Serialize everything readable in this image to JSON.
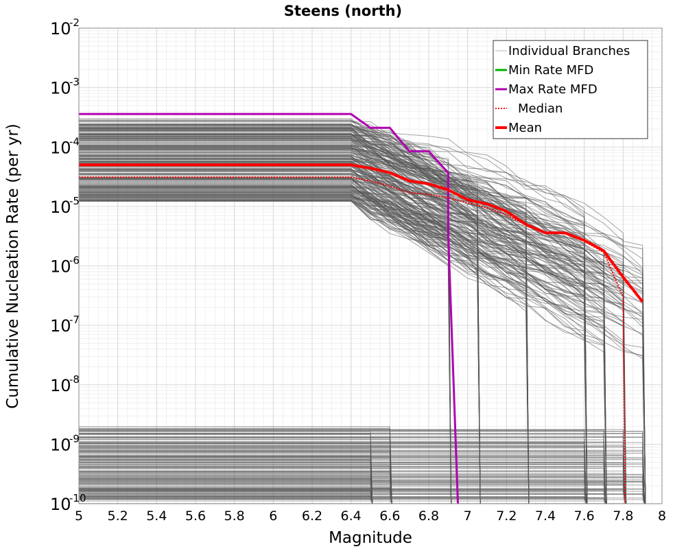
{
  "chart_data": {
    "type": "line",
    "title": "Steens (north)",
    "xlabel": "Magnitude",
    "ylabel": "Cumulative Nucleation Rate (per yr)",
    "x_scale": "linear",
    "y_scale": "log",
    "xlim": [
      5,
      8
    ],
    "ylim": [
      1e-10,
      0.01
    ],
    "grid": true,
    "legend_position": "top-right",
    "x_ticks": [
      "5",
      "5.2",
      "5.4",
      "5.6",
      "5.8",
      "6",
      "6.2",
      "6.4",
      "6.6",
      "6.8",
      "7",
      "7.2",
      "7.4",
      "7.6",
      "7.8",
      "8"
    ],
    "y_ticks": [
      {
        "base": "10",
        "exp": "-10",
        "value": 1e-10
      },
      {
        "base": "10",
        "exp": "-9",
        "value": 1e-09
      },
      {
        "base": "10",
        "exp": "-8",
        "value": 1e-08
      },
      {
        "base": "10",
        "exp": "-7",
        "value": 1e-07
      },
      {
        "base": "10",
        "exp": "-6",
        "value": 1e-06
      },
      {
        "base": "10",
        "exp": "-5",
        "value": 1e-05
      },
      {
        "base": "10",
        "exp": "-4",
        "value": 0.0001
      },
      {
        "base": "10",
        "exp": "-3",
        "value": 0.001
      },
      {
        "base": "10",
        "exp": "-2",
        "value": 0.01
      }
    ],
    "legend": [
      {
        "label": "Individual Branches",
        "color": "#b4b4b4",
        "style": "thin"
      },
      {
        "label": "Min Rate MFD",
        "color": "#00b000",
        "style": "solid"
      },
      {
        "label": "Max Rate MFD",
        "color": "#b000b0",
        "style": "solid"
      },
      {
        "label": "Median",
        "color": "#ff0000",
        "style": "dotted"
      },
      {
        "label": "Mean",
        "color": "#ff0000",
        "style": "thick"
      }
    ],
    "series": [
      {
        "name": "Max Rate MFD",
        "color": "#b000b0",
        "points": [
          [
            5.0,
            0.00036
          ],
          [
            6.4,
            0.00036
          ],
          [
            6.5,
            0.00021
          ],
          [
            6.6,
            0.00021
          ],
          [
            6.7,
            8.5e-05
          ],
          [
            6.8,
            8.5e-05
          ],
          [
            6.9,
            3.7e-05
          ],
          [
            6.9,
            3.7e-06
          ],
          [
            6.95,
            1e-10
          ]
        ]
      },
      {
        "name": "Median",
        "color": "#ff0000",
        "points": [
          [
            5.0,
            3.1e-05
          ],
          [
            6.4,
            3.1e-05
          ],
          [
            6.5,
            2.7e-05
          ],
          [
            6.6,
            2.2e-05
          ],
          [
            6.7,
            1.7e-05
          ],
          [
            6.8,
            1.6e-05
          ],
          [
            6.9,
            1.4e-05
          ],
          [
            7.0,
            1.15e-05
          ],
          [
            7.1,
            9.5e-06
          ],
          [
            7.2,
            7.2e-06
          ],
          [
            7.3,
            4.9e-06
          ],
          [
            7.4,
            3.6e-06
          ],
          [
            7.5,
            3.5e-06
          ],
          [
            7.6,
            2.6e-06
          ],
          [
            7.7,
            1.7e-06
          ],
          [
            7.8,
            3e-07
          ],
          [
            7.81,
            1e-10
          ]
        ]
      },
      {
        "name": "Mean",
        "color": "#ff0000",
        "points": [
          [
            5.0,
            5e-05
          ],
          [
            6.4,
            5e-05
          ],
          [
            6.5,
            4.4e-05
          ],
          [
            6.6,
            3.7e-05
          ],
          [
            6.7,
            2.7e-05
          ],
          [
            6.8,
            2.4e-05
          ],
          [
            6.9,
            1.9e-05
          ],
          [
            7.0,
            1.3e-05
          ],
          [
            7.1,
            1.1e-05
          ],
          [
            7.2,
            8.3e-06
          ],
          [
            7.3,
            5e-06
          ],
          [
            7.4,
            3.6e-06
          ],
          [
            7.5,
            3.6e-06
          ],
          [
            7.6,
            2.7e-06
          ],
          [
            7.7,
            1.8e-06
          ],
          [
            7.8,
            6.5e-07
          ],
          [
            7.9,
            2.5e-07
          ]
        ]
      }
    ],
    "branches": {
      "color": "#555555",
      "upper_band": {
        "y_min": 1.2e-05,
        "y_max": 0.0003,
        "knee_x": 6.4,
        "end_x_values": [
          6.9,
          7.05,
          7.3,
          7.6,
          7.7,
          7.8,
          7.9
        ]
      },
      "lower_band": {
        "y_min": 1e-10,
        "y_max": 2e-09,
        "end_x_values": [
          6.5,
          6.6,
          7.6,
          7.7,
          7.8,
          7.9
        ]
      }
    }
  }
}
